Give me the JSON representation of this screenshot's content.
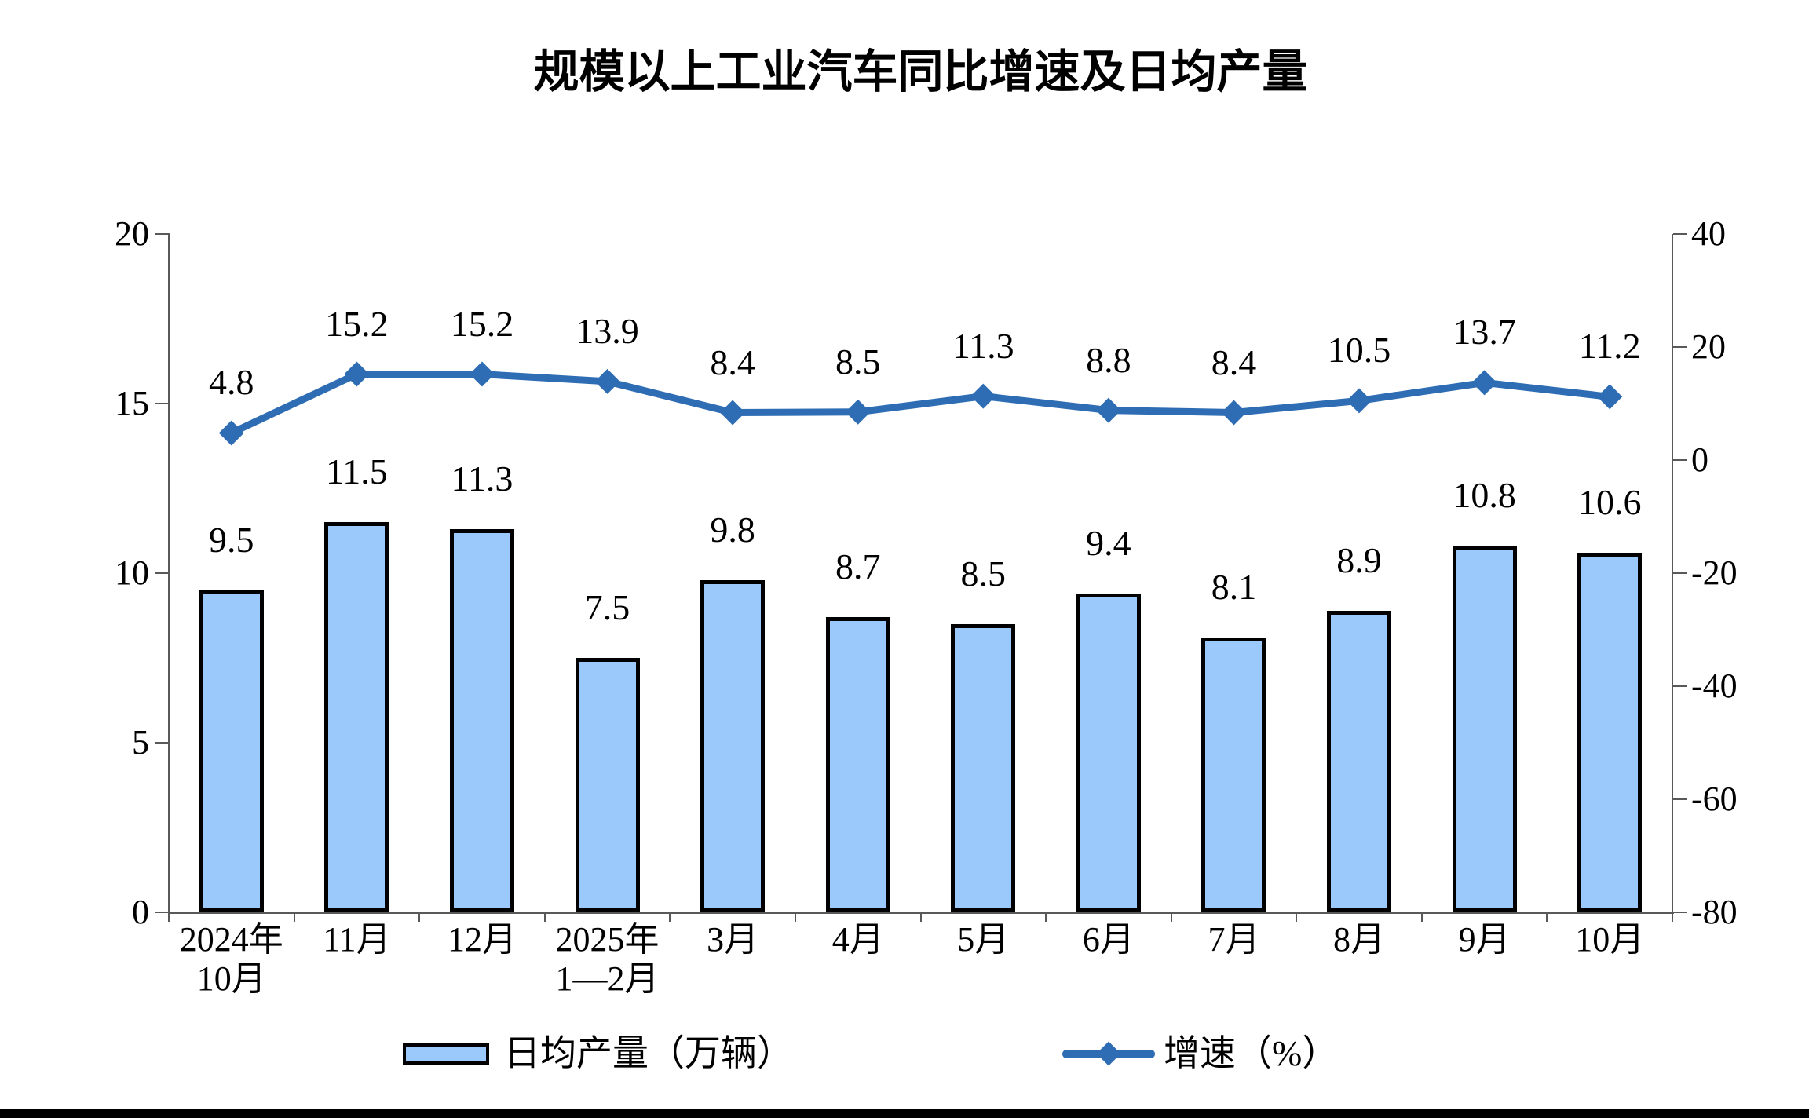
{
  "title": "规模以上工业汽车同比增速及日均产量",
  "legend": {
    "bar_label": "日均产量（万辆）",
    "line_label": "增速（%）"
  },
  "colors": {
    "bar_fill": "#9BC9FC",
    "bar_border": "#000000",
    "line": "#2E6DB4",
    "axis": "#595959",
    "text": "#000000",
    "bottom_bar": "#000000"
  },
  "chart_data": {
    "type": "bar+line",
    "title": "规模以上工业汽车同比增速及日均产量",
    "categories": [
      [
        "2024年",
        "10月"
      ],
      [
        "11月"
      ],
      [
        "12月"
      ],
      [
        "2025年",
        "1—2月"
      ],
      [
        "3月"
      ],
      [
        "4月"
      ],
      [
        "5月"
      ],
      [
        "6月"
      ],
      [
        "7月"
      ],
      [
        "8月"
      ],
      [
        "9月"
      ],
      [
        "10月"
      ]
    ],
    "series": [
      {
        "name": "日均产量（万辆）",
        "type": "bar",
        "axis": "left",
        "values": [
          9.5,
          11.5,
          11.3,
          7.5,
          9.8,
          8.7,
          8.5,
          9.4,
          8.1,
          8.9,
          10.8,
          10.6
        ]
      },
      {
        "name": "增速（%）",
        "type": "line",
        "axis": "right",
        "values": [
          4.8,
          15.2,
          15.2,
          13.9,
          8.4,
          8.5,
          11.3,
          8.8,
          8.4,
          10.5,
          13.7,
          11.2
        ]
      }
    ],
    "left_axis": {
      "ticks": [
        20,
        15,
        10,
        5,
        0
      ],
      "range": [
        0,
        20
      ]
    },
    "right_axis": {
      "ticks": [
        40,
        20,
        0,
        -20,
        -40,
        -60,
        -80
      ],
      "range": [
        -80,
        40
      ]
    },
    "grid": false,
    "legend_position": "bottom"
  }
}
